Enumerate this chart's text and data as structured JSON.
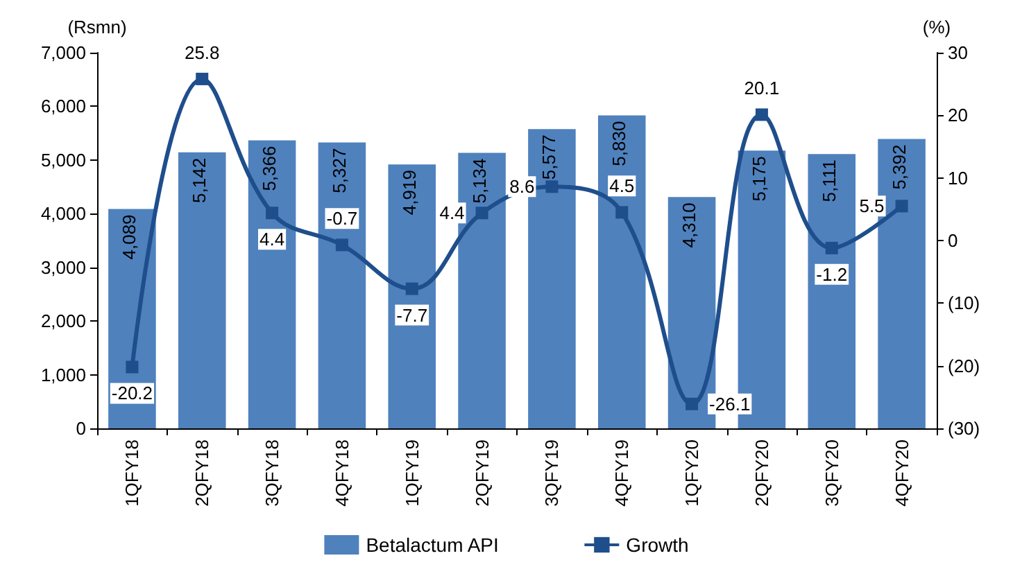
{
  "chart_data": {
    "type": "bar",
    "ylabel": "(Rsmn)",
    "y2label": "(%)",
    "categories": [
      "1QFY18",
      "2QFY18",
      "3QFY18",
      "4QFY18",
      "1QFY19",
      "2QFY19",
      "3QFY19",
      "4QFY19",
      "1QFY20",
      "2QFY20",
      "3QFY20",
      "4QFY20"
    ],
    "series": [
      {
        "name": "Betalactum API",
        "color": "#4f81bd",
        "values": [
          4089,
          5142,
          5366,
          5327,
          4919,
          5134,
          5577,
          5830,
          4310,
          5175,
          5111,
          5392
        ],
        "value_labels": [
          "4,089",
          "5,142",
          "5,366",
          "5,327",
          "4,919",
          "5,134",
          "5,577",
          "5,830",
          "4,310",
          "5,175",
          "5,111",
          "5,392"
        ]
      },
      {
        "name": "Growth",
        "type": "line",
        "axis": "y2",
        "color": "#1f4e8c",
        "values": [
          -20.2,
          25.8,
          4.4,
          -0.7,
          -7.7,
          4.4,
          8.6,
          4.5,
          -26.1,
          20.1,
          -1.2,
          5.5
        ],
        "value_labels": [
          "-20.2",
          "25.8",
          "4.4",
          "-0.7",
          "-7.7",
          "4.4",
          "8.6",
          "4.5",
          "-26.1",
          "20.1",
          "-1.2",
          "5.5"
        ]
      }
    ],
    "ylim": [
      0,
      7000
    ],
    "yticks": [
      0,
      {
        "value": 1000,
        "label": "1,000"
      },
      {
        "value": 2000,
        "label": "2,000"
      },
      {
        "value": 3000,
        "label": "3,000"
      },
      {
        "value": 4000,
        "label": "4,000"
      },
      {
        "value": 5000,
        "label": "5,000"
      },
      {
        "value": 6000,
        "label": "6,000"
      },
      {
        "value": 7000,
        "label": "7,000"
      }
    ],
    "y2lim": [
      -30,
      30
    ],
    "y2ticks": [
      {
        "value": -30,
        "label": "(30)"
      },
      {
        "value": -20,
        "label": "(20)"
      },
      {
        "value": -10,
        "label": "(10)"
      },
      0,
      10,
      20,
      30
    ],
    "legend": "bottom",
    "marker": "square",
    "grid": false
  }
}
